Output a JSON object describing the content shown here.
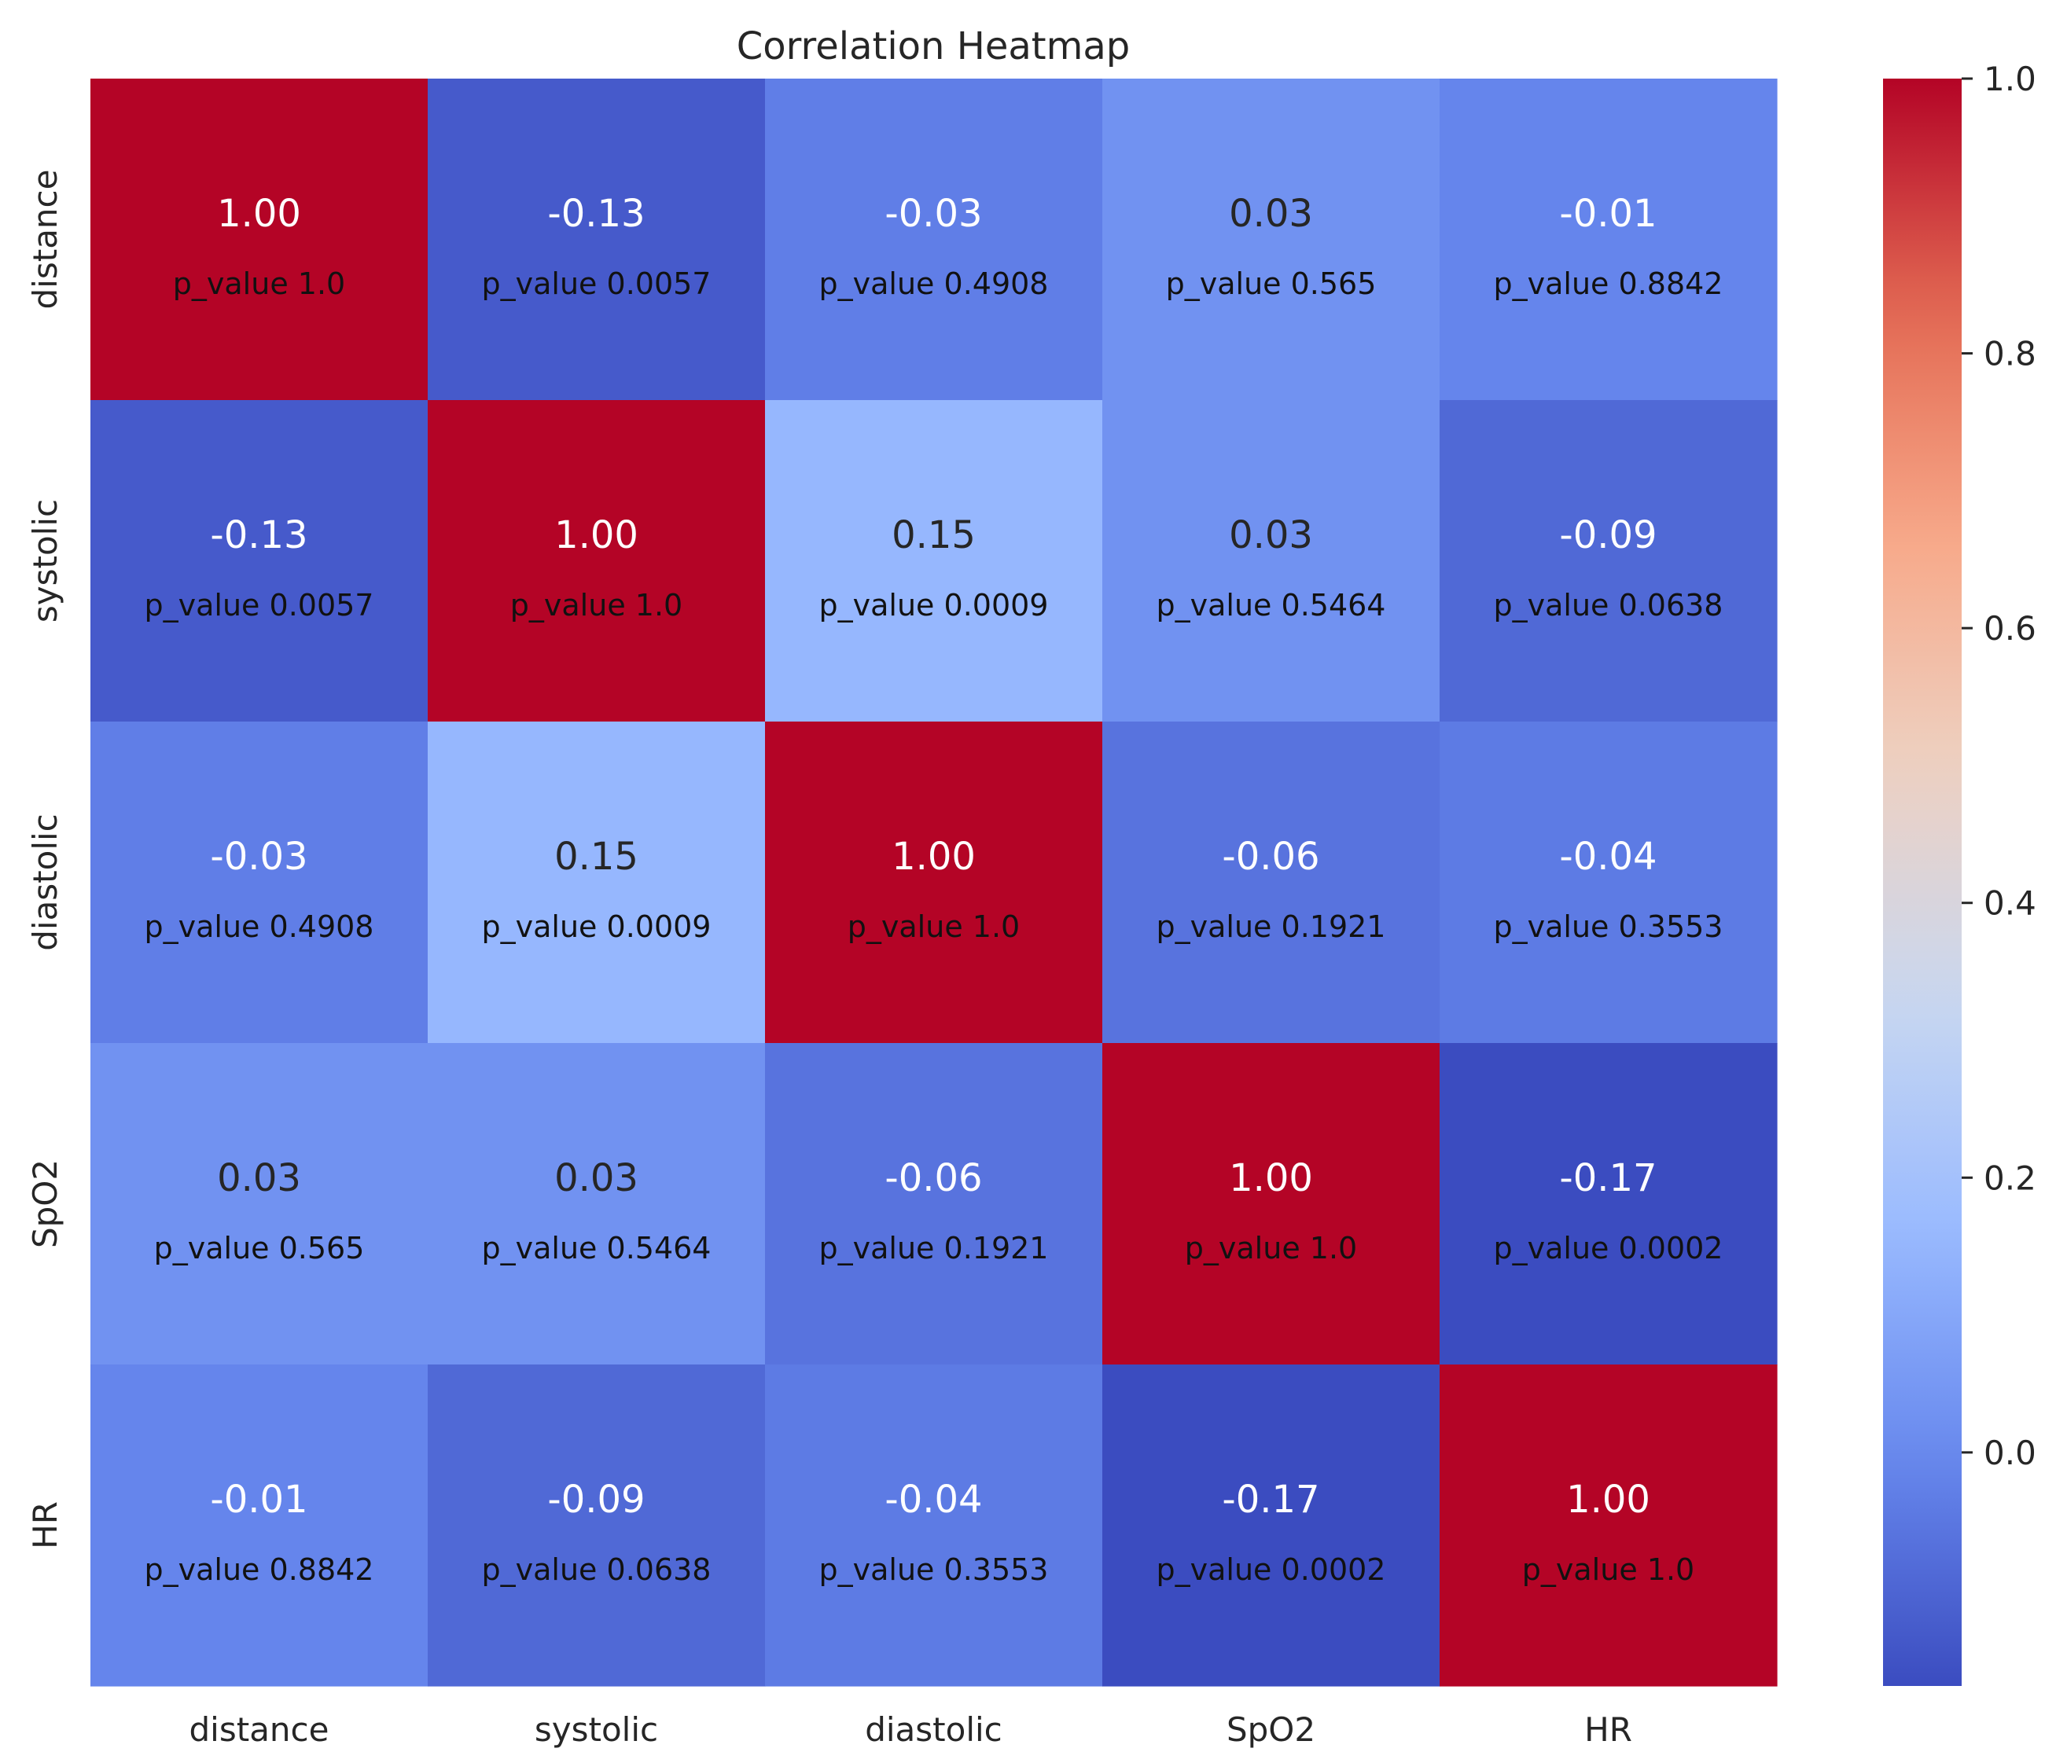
{
  "chart_data": {
    "type": "heatmap",
    "title": "Correlation Heatmap",
    "xlabel": "",
    "ylabel": "",
    "x_labels": [
      "distance",
      "systolic",
      "diastolic",
      "SpO2",
      "HR"
    ],
    "y_labels": [
      "distance",
      "systolic",
      "diastolic",
      "SpO2",
      "HR"
    ],
    "values": [
      [
        1.0,
        -0.13,
        -0.03,
        0.03,
        -0.01
      ],
      [
        -0.13,
        1.0,
        0.15,
        0.03,
        -0.09
      ],
      [
        -0.03,
        0.15,
        1.0,
        -0.06,
        -0.04
      ],
      [
        0.03,
        0.03,
        -0.06,
        1.0,
        -0.17
      ],
      [
        -0.01,
        -0.09,
        -0.04,
        -0.17,
        1.0
      ]
    ],
    "value_labels": [
      [
        "1.00",
        "-0.13",
        "-0.03",
        "0.03",
        "-0.01"
      ],
      [
        "-0.13",
        "1.00",
        "0.15",
        "0.03",
        "-0.09"
      ],
      [
        "-0.03",
        "0.15",
        "1.00",
        "-0.06",
        "-0.04"
      ],
      [
        "0.03",
        "0.03",
        "-0.06",
        "1.00",
        "-0.17"
      ],
      [
        "-0.01",
        "-0.09",
        "-0.04",
        "-0.17",
        "1.00"
      ]
    ],
    "p_value_labels": [
      [
        "p_value 1.0",
        "p_value 0.0057",
        "p_value 0.4908",
        "p_value 0.565",
        "p_value 0.8842"
      ],
      [
        "p_value 0.0057",
        "p_value 1.0",
        "p_value 0.0009",
        "p_value 0.5464",
        "p_value 0.0638"
      ],
      [
        "p_value 0.4908",
        "p_value 0.0009",
        "p_value 1.0",
        "p_value 0.1921",
        "p_value 0.3553"
      ],
      [
        "p_value 0.565",
        "p_value 0.5464",
        "p_value 0.1921",
        "p_value 1.0",
        "p_value 0.0002"
      ],
      [
        "p_value 0.8842",
        "p_value 0.0638",
        "p_value 0.3553",
        "p_value 0.0002",
        "p_value 1.0"
      ]
    ],
    "colormap": "coolwarm",
    "colormap_stops": [
      "#3b4cc0",
      "#6788ee",
      "#9abbff",
      "#c9d7f0",
      "#edd1c2",
      "#f7a889",
      "#e26952",
      "#b40426"
    ],
    "vmin": -0.17,
    "vmax": 1.0,
    "colorbar_ticks": [
      0.0,
      0.2,
      0.4,
      0.6,
      0.8,
      1.0
    ],
    "colorbar_tick_labels": [
      "0.0",
      "0.2",
      "0.4",
      "0.6",
      "0.8",
      "1.0"
    ],
    "colorbar_position": "right"
  }
}
